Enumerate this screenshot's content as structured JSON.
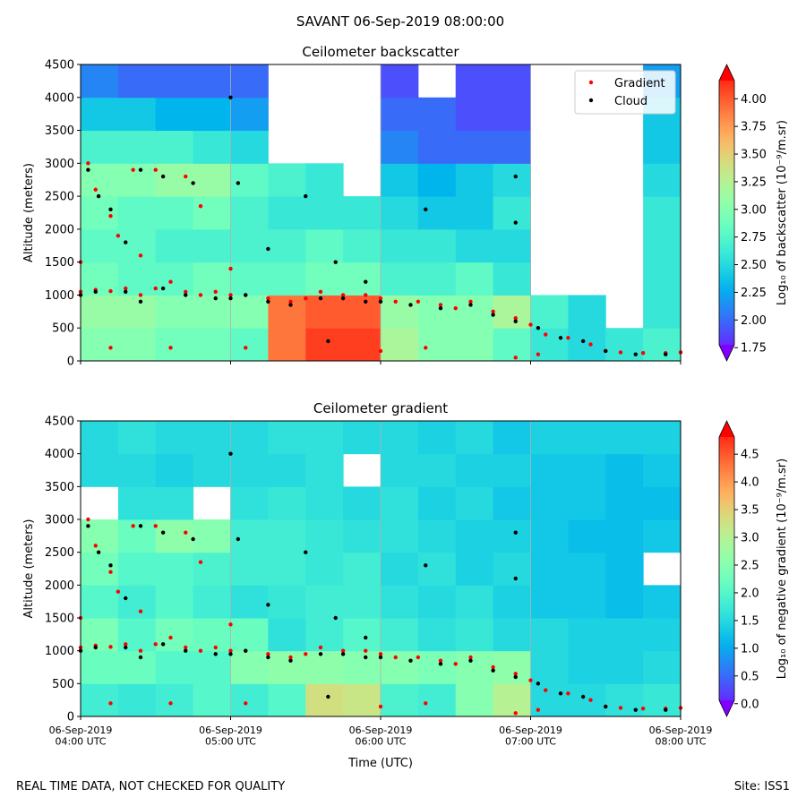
{
  "title": "SAVANT 06-Sep-2019 08:00:00",
  "footer_left": "REAL TIME DATA, NOT CHECKED FOR QUALITY",
  "footer_right": "Site: ISS1",
  "chart_data": [
    {
      "type": "heatmap",
      "title": "Ceilometer backscatter",
      "ylabel": "Altitude (meters)",
      "colorbar_label": "Log₁₀ of backscatter (10⁻⁹/m.sr)",
      "colormap": "rainbow",
      "xlim": [
        4,
        8
      ],
      "ylim": [
        0,
        4500
      ],
      "zlim": [
        1.63,
        4.31
      ],
      "xticks": [
        4,
        5,
        6,
        7,
        8
      ],
      "xgrid": true,
      "yticks": [
        0,
        500,
        1000,
        1500,
        2000,
        2500,
        3000,
        3500,
        4000,
        4500
      ],
      "zticks": [
        1.75,
        {
          "value": 2.0,
          "label": "2.00"
        },
        2.25,
        {
          "value": 2.5,
          "label": "2.50"
        },
        2.75,
        {
          "value": 3.0,
          "label": "3.00"
        },
        3.25,
        {
          "value": 3.5,
          "label": "3.50"
        },
        3.75,
        {
          "value": 4.0,
          "label": "4.00"
        }
      ],
      "xbins": [
        4,
        4.25,
        4.5,
        4.75,
        5,
        5.25,
        5.5,
        5.75,
        6,
        6.25,
        6.5,
        6.75,
        7,
        7.25,
        7.5,
        7.75,
        8
      ],
      "ybins": [
        0,
        500,
        1000,
        1500,
        2000,
        2500,
        3000,
        3500,
        4000,
        4500
      ],
      "z": [
        [
          3.0,
          3.0,
          2.9,
          2.9,
          2.8,
          3.9,
          4.1,
          4.1,
          3.2,
          3.0,
          3.0,
          2.8,
          2.6,
          2.5,
          2.6,
          2.7
        ],
        [
          3.1,
          3.1,
          3.0,
          3.0,
          3.0,
          3.9,
          4.0,
          4.0,
          3.1,
          3.0,
          3.0,
          3.2,
          2.7,
          2.5,
          null,
          2.6
        ],
        [
          2.9,
          2.8,
          2.8,
          2.9,
          2.8,
          2.8,
          2.9,
          2.9,
          2.7,
          2.7,
          2.8,
          2.6,
          null,
          null,
          null,
          2.6
        ],
        [
          2.8,
          2.8,
          2.7,
          2.7,
          2.7,
          2.7,
          2.8,
          2.7,
          2.6,
          2.6,
          2.5,
          2.5,
          null,
          null,
          null,
          2.6
        ],
        [
          2.9,
          2.8,
          2.8,
          2.9,
          2.7,
          2.6,
          2.6,
          2.6,
          2.5,
          2.4,
          2.4,
          2.6,
          null,
          null,
          null,
          2.6
        ],
        [
          3.0,
          3.0,
          3.1,
          3.1,
          2.8,
          2.7,
          2.6,
          null,
          2.4,
          2.3,
          2.4,
          2.5,
          null,
          null,
          null,
          2.5
        ],
        [
          2.7,
          2.7,
          2.7,
          2.6,
          2.5,
          null,
          null,
          null,
          2.1,
          2.0,
          2.0,
          2.0,
          null,
          null,
          null,
          2.4
        ],
        [
          2.4,
          2.4,
          2.3,
          2.3,
          2.2,
          null,
          null,
          null,
          2.0,
          2.0,
          1.9,
          1.9,
          null,
          null,
          null,
          2.4
        ],
        [
          2.1,
          2.0,
          2.0,
          2.0,
          2.0,
          null,
          null,
          null,
          1.9,
          null,
          1.9,
          1.9,
          null,
          null,
          null,
          2.2
        ]
      ],
      "legend": "upper right",
      "series": [
        {
          "name": "Gradient",
          "color": "#ff0000",
          "x": [
            4.0,
            4.1,
            4.2,
            4.3,
            4.4,
            4.5,
            4.6,
            4.7,
            4.8,
            4.9,
            5.0,
            5.1,
            5.25,
            5.4,
            5.5,
            5.6,
            5.75,
            5.9,
            6.0,
            6.1,
            6.25,
            6.4,
            6.5,
            6.6,
            6.75,
            6.9,
            7.0,
            7.1,
            7.25,
            7.4,
            7.5,
            7.6,
            7.75,
            7.9,
            8.0,
            4.05,
            4.1,
            4.2,
            4.25,
            4.35,
            4.5,
            4.7,
            4.0,
            4.4,
            4.6,
            4.2,
            5.0,
            5.1,
            6.3,
            6.0,
            6.9,
            7.05,
            4.8
          ],
          "y": [
            1050,
            1080,
            1060,
            1100,
            1000,
            1100,
            1200,
            1050,
            1000,
            1050,
            1000,
            1000,
            950,
            900,
            950,
            1050,
            1000,
            1000,
            950,
            900,
            900,
            850,
            800,
            900,
            750,
            650,
            550,
            400,
            350,
            250,
            150,
            130,
            120,
            120,
            130,
            3000,
            2600,
            2200,
            1900,
            2900,
            2900,
            2800,
            1500,
            1600,
            200,
            200,
            1400,
            200,
            200,
            150,
            50,
            100,
            2350
          ]
        },
        {
          "name": "Cloud",
          "color": "#000000",
          "x": [
            4.0,
            4.1,
            4.3,
            4.4,
            4.55,
            4.7,
            4.9,
            5.0,
            5.1,
            5.25,
            5.4,
            5.6,
            5.75,
            5.9,
            6.0,
            6.2,
            6.4,
            6.6,
            6.75,
            6.9,
            7.05,
            7.2,
            7.35,
            7.5,
            7.7,
            7.9,
            4.05,
            4.12,
            4.2,
            4.3,
            4.4,
            4.55,
            4.75,
            5.0,
            5.05,
            5.25,
            5.5,
            5.7,
            5.9,
            6.3,
            6.9,
            6.9,
            5.65
          ],
          "y": [
            1000,
            1050,
            1050,
            900,
            1100,
            1000,
            950,
            950,
            1000,
            900,
            850,
            950,
            950,
            900,
            900,
            850,
            800,
            850,
            700,
            600,
            500,
            350,
            300,
            150,
            100,
            100,
            2900,
            2500,
            2300,
            1800,
            2900,
            2800,
            2700,
            4000,
            2700,
            1700,
            2500,
            1500,
            1200,
            2300,
            2800,
            2100,
            300
          ]
        }
      ]
    },
    {
      "type": "heatmap",
      "title": "Ceilometer gradient",
      "ylabel": "Altitude (meters)",
      "xlabel": "Time (UTC)",
      "colorbar_label": "Log₁₀ of negative gradient (10⁻⁹/m.sr)",
      "colormap": "rainbow",
      "xlim": [
        4,
        8
      ],
      "ylim": [
        0,
        4500
      ],
      "zlim": [
        -0.23,
        5.1
      ],
      "xticks": [
        {
          "value": 4,
          "label": "06-Sep-2019\n04:00 UTC"
        },
        {
          "value": 5,
          "label": "06-Sep-2019\n05:00 UTC"
        },
        {
          "value": 6,
          "label": "06-Sep-2019\n06:00 UTC"
        },
        {
          "value": 7,
          "label": "06-Sep-2019\n07:00 UTC"
        },
        {
          "value": 8,
          "label": "06-Sep-2019\n08:00 UTC"
        }
      ],
      "xgrid": true,
      "yticks": [
        0,
        500,
        1000,
        1500,
        2000,
        2500,
        3000,
        3500,
        4000,
        4500
      ],
      "zticks": [
        {
          "value": 0,
          "label": "0.0"
        },
        0.5,
        {
          "value": 1,
          "label": "1.0"
        },
        1.5,
        {
          "value": 2,
          "label": "2.0"
        },
        2.5,
        {
          "value": 3,
          "label": "3.0"
        },
        3.5,
        {
          "value": 4,
          "label": "4.0"
        },
        4.5
      ],
      "xbins": [
        4,
        4.25,
        4.5,
        4.75,
        5,
        5.25,
        5.5,
        5.75,
        6,
        6.25,
        6.5,
        6.75,
        7,
        7.25,
        7.5,
        7.75,
        8
      ],
      "ybins": [
        0,
        500,
        1000,
        1500,
        2000,
        2500,
        3000,
        3500,
        4000,
        4500
      ],
      "z": [
        [
          1.8,
          1.7,
          1.8,
          2.0,
          1.8,
          2.0,
          3.3,
          3.2,
          1.9,
          1.8,
          2.5,
          3.0,
          1.5,
          1.5,
          1.6,
          1.7
        ],
        [
          2.2,
          2.2,
          2.0,
          2.0,
          2.5,
          2.6,
          2.6,
          2.5,
          2.5,
          2.4,
          2.5,
          2.6,
          1.5,
          1.4,
          1.4,
          1.5
        ],
        [
          2.4,
          2.0,
          2.3,
          2.2,
          2.2,
          1.6,
          1.8,
          2.0,
          1.8,
          1.6,
          1.7,
          1.5,
          1.5,
          1.4,
          1.4,
          1.4
        ],
        [
          2.0,
          1.8,
          2.0,
          1.8,
          1.6,
          1.7,
          1.8,
          1.8,
          1.6,
          1.5,
          1.6,
          1.4,
          1.3,
          1.3,
          1.2,
          1.3
        ],
        [
          2.3,
          2.0,
          2.0,
          1.9,
          1.8,
          1.8,
          1.7,
          1.8,
          1.5,
          1.6,
          1.4,
          1.5,
          1.3,
          1.3,
          1.2,
          null
        ],
        [
          2.5,
          2.2,
          2.6,
          2.5,
          1.8,
          1.8,
          1.7,
          1.6,
          1.6,
          1.5,
          1.4,
          1.4,
          1.3,
          1.2,
          1.2,
          1.3
        ],
        [
          null,
          1.6,
          1.6,
          null,
          1.6,
          1.7,
          1.6,
          1.5,
          1.6,
          1.4,
          1.5,
          1.3,
          1.3,
          1.3,
          1.2,
          1.2
        ],
        [
          1.5,
          1.5,
          1.4,
          1.5,
          1.5,
          1.5,
          1.6,
          null,
          1.5,
          1.5,
          1.4,
          1.4,
          1.3,
          1.3,
          1.2,
          1.3
        ],
        [
          1.5,
          1.6,
          1.5,
          1.5,
          1.5,
          1.6,
          1.6,
          1.5,
          1.5,
          1.4,
          1.5,
          1.3,
          1.4,
          1.4,
          1.4,
          1.4
        ]
      ],
      "series": [
        {
          "color": "#ff0000",
          "x": [
            4.0,
            4.1,
            4.2,
            4.3,
            4.4,
            4.5,
            4.6,
            4.7,
            4.8,
            4.9,
            5.0,
            5.1,
            5.25,
            5.4,
            5.5,
            5.6,
            5.75,
            5.9,
            6.0,
            6.1,
            6.25,
            6.4,
            6.5,
            6.6,
            6.75,
            6.9,
            7.0,
            7.1,
            7.25,
            7.4,
            7.5,
            7.6,
            7.75,
            7.9,
            8.0,
            4.05,
            4.1,
            4.2,
            4.25,
            4.35,
            4.5,
            4.7,
            4.0,
            4.4,
            4.6,
            4.2,
            5.0,
            5.1,
            6.3,
            6.0,
            6.9,
            7.05,
            4.8
          ],
          "y": [
            1050,
            1080,
            1060,
            1100,
            1000,
            1100,
            1200,
            1050,
            1000,
            1050,
            1000,
            1000,
            950,
            900,
            950,
            1050,
            1000,
            1000,
            950,
            900,
            900,
            850,
            800,
            900,
            750,
            650,
            550,
            400,
            350,
            250,
            150,
            130,
            120,
            120,
            130,
            3000,
            2600,
            2200,
            1900,
            2900,
            2900,
            2800,
            1500,
            1600,
            200,
            200,
            1400,
            200,
            200,
            150,
            50,
            100,
            2350
          ]
        },
        {
          "color": "#000000",
          "x": [
            4.0,
            4.1,
            4.3,
            4.4,
            4.55,
            4.7,
            4.9,
            5.0,
            5.1,
            5.25,
            5.4,
            5.6,
            5.75,
            5.9,
            6.0,
            6.2,
            6.4,
            6.6,
            6.75,
            6.9,
            7.05,
            7.2,
            7.35,
            7.5,
            7.7,
            7.9,
            4.05,
            4.12,
            4.2,
            4.3,
            4.4,
            4.55,
            4.75,
            5.0,
            5.05,
            5.25,
            5.5,
            5.7,
            5.9,
            6.3,
            6.9,
            6.9,
            5.65
          ],
          "y": [
            1000,
            1050,
            1050,
            900,
            1100,
            1000,
            950,
            950,
            1000,
            900,
            850,
            950,
            950,
            900,
            900,
            850,
            800,
            850,
            700,
            600,
            500,
            350,
            300,
            150,
            100,
            100,
            2900,
            2500,
            2300,
            1800,
            2900,
            2800,
            2700,
            4000,
            2700,
            1700,
            2500,
            1500,
            1200,
            2300,
            2800,
            2100,
            300
          ]
        }
      ]
    }
  ]
}
